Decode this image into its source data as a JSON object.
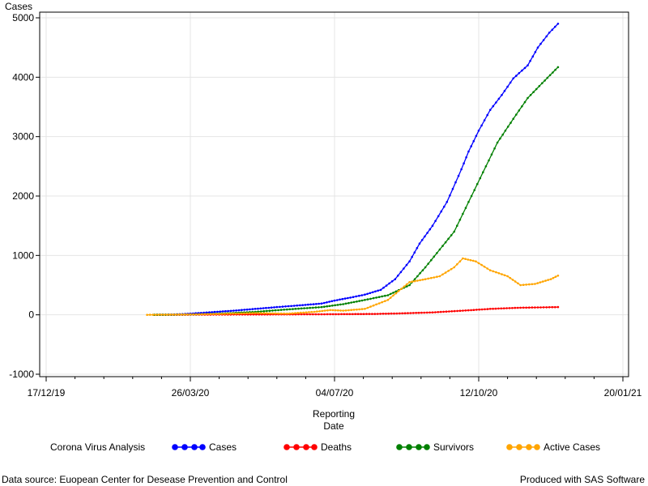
{
  "chart_data": {
    "type": "line",
    "ylabel": "Cases",
    "xlabel_line1": "Reporting",
    "xlabel_line2": "Date",
    "ylim": [
      -1000,
      5000
    ],
    "yticks": [
      -1000,
      0,
      1000,
      2000,
      3000,
      4000,
      5000
    ],
    "xlim": [
      "2019-12-17",
      "2021-01-20"
    ],
    "xticks": [
      "2019-12-17",
      "2020-03-26",
      "2020-07-04",
      "2020-10-12",
      "2021-01-20"
    ],
    "xtick_labels": [
      "17/12/19",
      "26/03/20",
      "04/07/20",
      "12/10/20",
      "20/01/21"
    ],
    "grid": true,
    "legend_title": "Corona Virus Analysis",
    "legend_placement": "bottom",
    "series": [
      {
        "name": "Cases",
        "color": "#0000ff",
        "points": [
          [
            "2020-03-01",
            0
          ],
          [
            "2020-03-15",
            5
          ],
          [
            "2020-03-26",
            20
          ],
          [
            "2020-04-10",
            45
          ],
          [
            "2020-04-25",
            70
          ],
          [
            "2020-05-10",
            100
          ],
          [
            "2020-05-25",
            130
          ],
          [
            "2020-06-10",
            160
          ],
          [
            "2020-06-25",
            190
          ],
          [
            "2020-07-04",
            240
          ],
          [
            "2020-07-15",
            290
          ],
          [
            "2020-07-25",
            340
          ],
          [
            "2020-08-05",
            420
          ],
          [
            "2020-08-15",
            600
          ],
          [
            "2020-08-25",
            900
          ],
          [
            "2020-09-01",
            1200
          ],
          [
            "2020-09-10",
            1500
          ],
          [
            "2020-09-20",
            1900
          ],
          [
            "2020-09-30",
            2450
          ],
          [
            "2020-10-05",
            2750
          ],
          [
            "2020-10-12",
            3100
          ],
          [
            "2020-10-20",
            3450
          ],
          [
            "2020-10-28",
            3700
          ],
          [
            "2020-11-05",
            3980
          ],
          [
            "2020-11-15",
            4200
          ],
          [
            "2020-11-22",
            4500
          ],
          [
            "2020-11-30",
            4750
          ],
          [
            "2020-12-06",
            4900
          ]
        ]
      },
      {
        "name": "Deaths",
        "color": "#ff0000",
        "points": [
          [
            "2020-03-01",
            0
          ],
          [
            "2020-04-01",
            2
          ],
          [
            "2020-05-01",
            5
          ],
          [
            "2020-06-01",
            8
          ],
          [
            "2020-07-01",
            10
          ],
          [
            "2020-08-01",
            15
          ],
          [
            "2020-08-20",
            25
          ],
          [
            "2020-09-10",
            40
          ],
          [
            "2020-10-01",
            70
          ],
          [
            "2020-10-20",
            100
          ],
          [
            "2020-11-10",
            120
          ],
          [
            "2020-12-06",
            130
          ]
        ]
      },
      {
        "name": "Survivors",
        "color": "#008000",
        "points": [
          [
            "2020-03-01",
            0
          ],
          [
            "2020-03-26",
            5
          ],
          [
            "2020-04-15",
            20
          ],
          [
            "2020-05-10",
            50
          ],
          [
            "2020-06-01",
            90
          ],
          [
            "2020-06-25",
            130
          ],
          [
            "2020-07-10",
            180
          ],
          [
            "2020-07-25",
            250
          ],
          [
            "2020-08-10",
            330
          ],
          [
            "2020-08-25",
            500
          ],
          [
            "2020-09-05",
            800
          ],
          [
            "2020-09-15",
            1100
          ],
          [
            "2020-09-25",
            1400
          ],
          [
            "2020-10-05",
            1900
          ],
          [
            "2020-10-15",
            2400
          ],
          [
            "2020-10-25",
            2900
          ],
          [
            "2020-11-05",
            3300
          ],
          [
            "2020-11-15",
            3650
          ],
          [
            "2020-11-25",
            3900
          ],
          [
            "2020-12-06",
            4170
          ]
        ]
      },
      {
        "name": "Active Cases",
        "color": "#ffa500",
        "points": [
          [
            "2020-02-25",
            0
          ],
          [
            "2020-03-20",
            5
          ],
          [
            "2020-04-15",
            15
          ],
          [
            "2020-05-10",
            30
          ],
          [
            "2020-06-01",
            20
          ],
          [
            "2020-06-20",
            50
          ],
          [
            "2020-07-01",
            80
          ],
          [
            "2020-07-10",
            70
          ],
          [
            "2020-07-25",
            100
          ],
          [
            "2020-08-10",
            250
          ],
          [
            "2020-08-25",
            550
          ],
          [
            "2020-09-05",
            600
          ],
          [
            "2020-09-15",
            650
          ],
          [
            "2020-09-25",
            800
          ],
          [
            "2020-10-01",
            950
          ],
          [
            "2020-10-10",
            900
          ],
          [
            "2020-10-20",
            750
          ],
          [
            "2020-11-01",
            650
          ],
          [
            "2020-11-10",
            500
          ],
          [
            "2020-11-20",
            520
          ],
          [
            "2020-12-01",
            600
          ],
          [
            "2020-12-06",
            660
          ]
        ]
      }
    ]
  },
  "footer": {
    "left": "Data source: Euopean Center for Desease Prevention and Control",
    "right": "Produced with SAS Software"
  }
}
